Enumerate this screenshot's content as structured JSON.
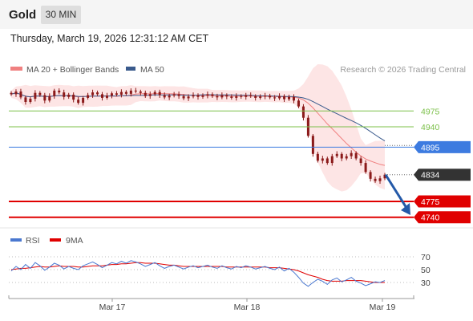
{
  "header": {
    "instrument": "Gold",
    "timeframe": "30 MIN"
  },
  "datetime": "Thursday, March 19, 2026 12:31:12 AM CET",
  "legend": {
    "ma20_bb": "MA 20 + Bollinger Bands",
    "ma50": "MA 50",
    "credit": "Research © 2026 Trading Central"
  },
  "rsi_legend": {
    "rsi": "RSI",
    "ma9": "9MA"
  },
  "colors": {
    "bb_fill": "#fde0e0",
    "ma20": "#f08080",
    "ma50": "#3a5a8c",
    "candle": "#8b1a1a",
    "resistance": "#7cc04a",
    "pivot": "#3d7be0",
    "support": "#e00000",
    "last": "#333333",
    "arrow": "#2459a8",
    "rsi": "#4a78d0",
    "rsi_ma": "#e00000"
  },
  "chart_data": [
    {
      "type": "candlestick",
      "title": "Gold",
      "x_categories": [
        "Mar 17",
        "Mar 18",
        "Mar 19"
      ],
      "ylim": [
        4720,
        5050
      ],
      "overlays": [
        "MA 20 + Bollinger Bands",
        "MA 50"
      ],
      "levels": [
        {
          "value": 4975,
          "label": "4975",
          "kind": "resistance"
        },
        {
          "value": 4940,
          "label": "4940",
          "kind": "resistance"
        },
        {
          "value": 4895,
          "label": "4895",
          "kind": "pivot"
        },
        {
          "value": 4834,
          "label": "4834",
          "kind": "last"
        },
        {
          "value": 4775,
          "label": "4775",
          "kind": "support"
        },
        {
          "value": 4740,
          "label": "4740",
          "kind": "support"
        }
      ],
      "close_series": [
        5012,
        5018,
        5005,
        4995,
        5002,
        5015,
        5010,
        4998,
        5008,
        5020,
        5016,
        5006,
        5011,
        5000,
        4993,
        5004,
        5010,
        5016,
        5012,
        5004,
        5009,
        5014,
        5011,
        5017,
        5013,
        5020,
        5018,
        5015,
        5008,
        5012,
        5017,
        5010,
        5005,
        5009,
        5012,
        5008,
        5003,
        5007,
        5010,
        5006,
        5009,
        5012,
        5008,
        5005,
        5010,
        5007,
        5004,
        5008,
        5006,
        5010,
        5008,
        5004,
        5007,
        5009,
        5005,
        5003,
        5008,
        5001,
        5006,
        4998,
        4985,
        4960,
        4920,
        4880,
        4865,
        4870,
        4860,
        4875,
        4880,
        4870,
        4875,
        4882,
        4870,
        4860,
        4840,
        4825,
        4820,
        4826,
        4834
      ],
      "price_ticks": [],
      "candle_width": 3
    },
    {
      "type": "line",
      "title": "RSI",
      "series": [
        {
          "name": "RSI",
          "values": [
            48,
            55,
            50,
            58,
            52,
            61,
            56,
            49,
            54,
            60,
            57,
            51,
            55,
            52,
            50,
            56,
            59,
            62,
            58,
            53,
            57,
            61,
            59,
            63,
            60,
            64,
            62,
            59,
            55,
            58,
            61,
            56,
            52,
            55,
            57,
            54,
            51,
            54,
            56,
            53,
            55,
            57,
            54,
            52,
            56,
            53,
            51,
            55,
            53,
            56,
            54,
            51,
            53,
            55,
            52,
            50,
            54,
            48,
            52,
            46,
            38,
            29,
            24,
            30,
            35,
            32,
            27,
            34,
            37,
            31,
            34,
            38,
            32,
            29,
            25,
            28,
            31,
            30,
            33
          ]
        },
        {
          "name": "9MA",
          "values": [
            50,
            51,
            52,
            52,
            53,
            54,
            55,
            54,
            54,
            55,
            56,
            55,
            55,
            55,
            54,
            54,
            55,
            56,
            56,
            56,
            57,
            58,
            58,
            59,
            59,
            60,
            61,
            61,
            60,
            60,
            60,
            59,
            58,
            57,
            57,
            56,
            55,
            55,
            55,
            55,
            55,
            55,
            55,
            55,
            55,
            54,
            54,
            54,
            54,
            54,
            54,
            54,
            54,
            54,
            53,
            53,
            53,
            52,
            51,
            50,
            48,
            45,
            42,
            40,
            38,
            35,
            33,
            32,
            32,
            32,
            33,
            33,
            33,
            33,
            32,
            31,
            30,
            30,
            30
          ]
        }
      ],
      "ylim": [
        0,
        100
      ],
      "ticks": [
        70,
        50,
        30
      ]
    }
  ]
}
